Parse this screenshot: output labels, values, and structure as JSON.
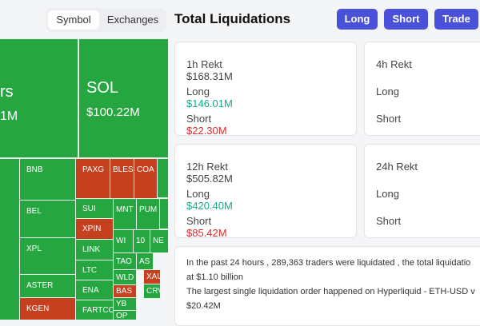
{
  "tabs": [
    "Symbol",
    "Exchanges"
  ],
  "header": {
    "title": "Total Liquidations",
    "buttons": [
      "Long",
      "Short",
      "Trade"
    ]
  },
  "treemap": {
    "big": {
      "label": "rs",
      "value": "1M"
    },
    "sol": {
      "label": "SOL",
      "value": "$100.22M"
    },
    "cells": [
      "BNB",
      "BEL",
      "XPL",
      "ASTER",
      "KGEN",
      "PAXG",
      "BLES",
      "COA",
      "SUI",
      "XPIN",
      "LINK",
      "LTC",
      "ENA",
      "FARTCO",
      "MNT",
      "PUM",
      "WI",
      "10",
      "NE",
      "TAO",
      "WLD",
      "BAS",
      "YB",
      "OP",
      "AS",
      "XAU",
      "CRV"
    ]
  },
  "cards": [
    {
      "title": "1h Rekt",
      "total": "$168.31M",
      "long_label": "Long",
      "long": "$146.01M",
      "short_label": "Short",
      "short": "$22.30M"
    },
    {
      "title": "4h Rekt",
      "long_label": "Long",
      "short_label": "Short"
    },
    {
      "title": "12h Rekt",
      "total": "$505.82M",
      "long_label": "Long",
      "long": "$420.40M",
      "short_label": "Short",
      "short": "$85.42M"
    },
    {
      "title": "24h Rekt",
      "long_label": "Long",
      "short_label": "Short"
    }
  ],
  "summary": [
    "In the past 24 hours , 289,363 traders were liquidated , the total liquidatio",
    "at $1.10 billion",
    "The largest single liquidation order happened on Hyperliquid - ETH-USD v",
    "$20.42M"
  ]
}
